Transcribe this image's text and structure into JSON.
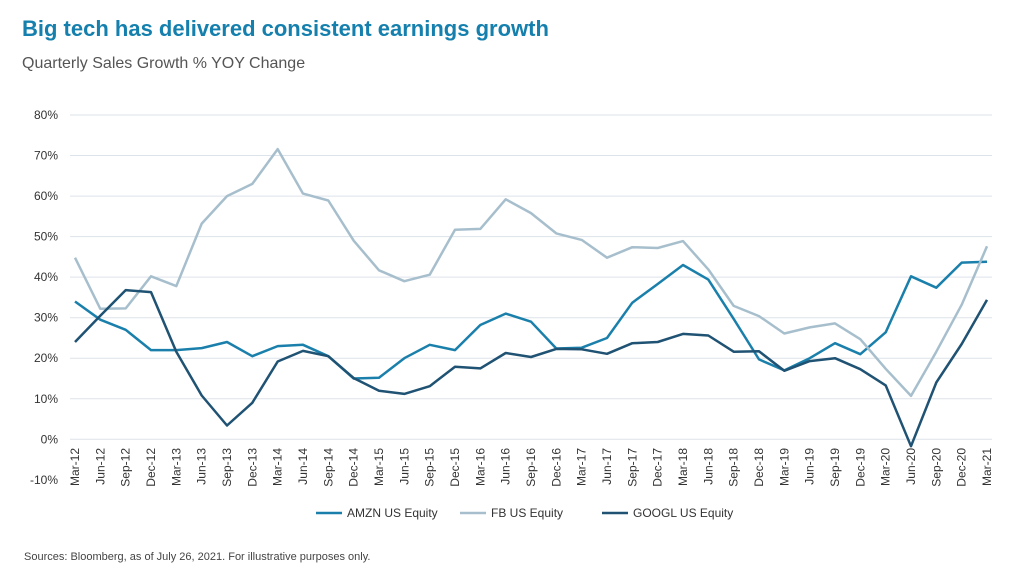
{
  "title": "Big tech has delivered consistent earnings growth",
  "subtitle": "Quarterly Sales Growth % YOY Change",
  "source": "Sources: Bloomberg, as of July 26, 2021. For illustrative purposes only.",
  "chart_data": {
    "type": "line",
    "title": "Big tech has delivered consistent earnings growth",
    "subtitle": "Quarterly Sales Growth % YOY Change",
    "ylim": [
      -10,
      80
    ],
    "yticks": [
      -10,
      0,
      10,
      20,
      30,
      40,
      50,
      60,
      70,
      80
    ],
    "ytick_labels": [
      "-10%",
      "0%",
      "10%",
      "20%",
      "30%",
      "40%",
      "50%",
      "60%",
      "70%",
      "80%"
    ],
    "grid": true,
    "legend": "bottom",
    "x": [
      "Mar-12",
      "Jun-12",
      "Sep-12",
      "Dec-12",
      "Mar-13",
      "Jun-13",
      "Sep-13",
      "Dec-13",
      "Mar-14",
      "Jun-14",
      "Sep-14",
      "Dec-14",
      "Mar-15",
      "Jun-15",
      "Sep-15",
      "Dec-15",
      "Mar-16",
      "Jun-16",
      "Sep-16",
      "Dec-16",
      "Mar-17",
      "Jun-17",
      "Sep-17",
      "Dec-17",
      "Mar-18",
      "Jun-18",
      "Sep-18",
      "Dec-18",
      "Mar-19",
      "Jun-19",
      "Sep-19",
      "Dec-19",
      "Mar-20",
      "Jun-20",
      "Sep-20",
      "Dec-20",
      "Mar-21"
    ],
    "series": [
      {
        "name": "AMZN US Equity",
        "color": "#1a80ab",
        "values": [
          34,
          29.5,
          27,
          22,
          22,
          22.5,
          24,
          20.5,
          23,
          23.3,
          20.5,
          15,
          15.2,
          20,
          23.3,
          22,
          28.2,
          31,
          29,
          22.4,
          22.6,
          25,
          33.7,
          38.3,
          43,
          39.4,
          29.7,
          19.7,
          17,
          20,
          23.7,
          21,
          26.4,
          40.2,
          37.4,
          43.6,
          43.8
        ]
      },
      {
        "name": "FB US Equity",
        "color": "#a7bfcd",
        "values": [
          44.8,
          32.2,
          32.3,
          40.2,
          37.8,
          53.2,
          60,
          63,
          71.6,
          60.6,
          58.9,
          49,
          41.7,
          39,
          40.6,
          51.7,
          51.9,
          59.2,
          55.8,
          50.8,
          49.2,
          44.8,
          47.4,
          47.2,
          48.9,
          41.9,
          32.9,
          30.4,
          26.1,
          27.6,
          28.6,
          24.7,
          17.4,
          10.7,
          21.6,
          33.2,
          47.6
        ]
      },
      {
        "name": "GOOGL US Equity",
        "color": "#1f5273",
        "values": [
          24,
          30.5,
          36.8,
          36.3,
          21.6,
          10.8,
          3.4,
          9,
          19.2,
          21.8,
          20.5,
          15.1,
          12,
          11.2,
          13.1,
          17.9,
          17.5,
          21.3,
          20.3,
          22.3,
          22.2,
          21.1,
          23.7,
          24,
          26,
          25.6,
          21.6,
          21.7,
          16.9,
          19.3,
          20,
          17.3,
          13.3,
          -1.7,
          14,
          23.5,
          34.4
        ]
      }
    ]
  }
}
